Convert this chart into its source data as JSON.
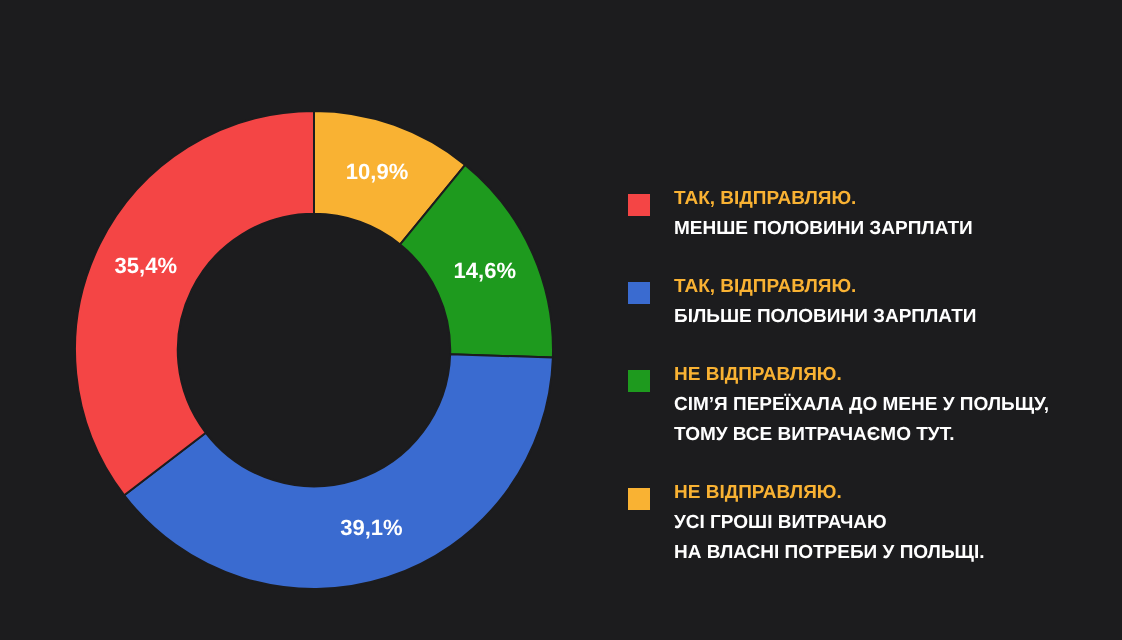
{
  "chart_data": {
    "type": "donut",
    "categories": [
      "ТАК, ВІДПРАВЛЯЮ.\nМЕНШЕ ПОЛОВИНИ ЗАРПЛАТИ",
      "ТАК, ВІДПРАВЛЯЮ.\nБІЛЬШЕ ПОЛОВИНИ ЗАРПЛАТИ",
      "НЕ ВІДПРАВЛЯЮ.\nСІМ’Я ПЕРЕЇХАЛА ДО МЕНЕ У ПОЛЬЩУ,\nТОМУ ВСЕ ВИТРАЧАЄМО ТУТ.",
      "НЕ ВІДПРАВЛЯЮ.\nУСІ ГРОШІ ВИТРАЧАЮ\nНА ВЛАСНІ ПОТРЕБИ У ПОЛЬЩІ."
    ],
    "values": [
      35.4,
      39.1,
      14.6,
      10.9
    ],
    "value_labels": [
      "35,4%",
      "39,1%",
      "14,6%",
      "10,9%"
    ],
    "colors": [
      "#f44545",
      "#3a6bd0",
      "#1e9a1e",
      "#f9b233"
    ],
    "legend": "right"
  }
}
